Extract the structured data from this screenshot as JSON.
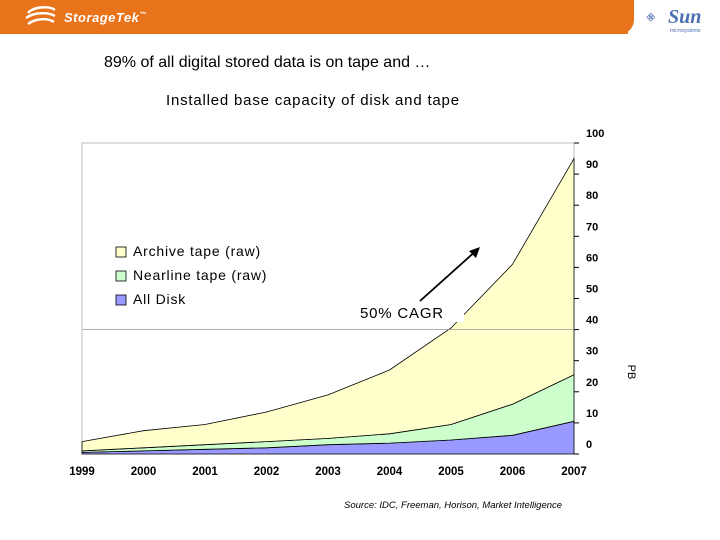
{
  "header": {
    "brand_name": "StorageTek",
    "brand_tm": "™",
    "partner_name": "Sun",
    "partner_sub": "microsystems",
    "bar_color": "#e8731a"
  },
  "slide": {
    "title": "89% of all digital stored data is on tape and …"
  },
  "chart_data": {
    "type": "area",
    "stacked": true,
    "title": "Installed base capacity of disk and tape",
    "x": [
      "1999",
      "2000",
      "2001",
      "2002",
      "2003",
      "2004",
      "2005",
      "2006",
      "2007"
    ],
    "series": [
      {
        "name": "All Disk",
        "values": [
          0.5,
          1,
          1.5,
          2,
          3,
          3.5,
          4.5,
          6,
          10.5
        ],
        "color": "#9999ff"
      },
      {
        "name": "Nearline tape (raw)",
        "values": [
          0.5,
          1,
          1.5,
          2,
          2,
          3,
          5,
          10,
          15
        ],
        "color": "#ccffcc"
      },
      {
        "name": "Archive tape (raw)",
        "values": [
          3,
          5.5,
          6.5,
          9.5,
          14,
          20.5,
          31,
          45,
          69.5
        ],
        "color": "#ffffcc"
      }
    ],
    "ylim": [
      0,
      100
    ],
    "yticks": [
      0,
      10,
      20,
      30,
      40,
      50,
      60,
      70,
      80,
      90,
      100
    ],
    "ylabel": "PB",
    "grid": false,
    "legend_position": "left",
    "annotation": "50% CAGR",
    "source": "Source: IDC, Freeman, Horison, Market Intelligence"
  }
}
